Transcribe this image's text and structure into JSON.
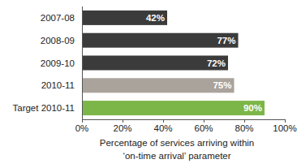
{
  "chart_data": {
    "type": "bar",
    "orientation": "horizontal",
    "categories": [
      "2007-08",
      "2008-09",
      "2009-10",
      "2010-11",
      "Target 2010-11"
    ],
    "values": [
      42,
      77,
      72,
      75,
      90
    ],
    "value_labels": [
      "42%",
      "77%",
      "72%",
      "75%",
      "90%"
    ],
    "colors": [
      "#3b3b3b",
      "#3b3b3b",
      "#3b3b3b",
      "#aaa39c",
      "#7cb648"
    ],
    "data_labels": true,
    "xlabel": "Percentage of services arriving within ‘on-time arrival’ parameter",
    "xlim": [
      0,
      100
    ],
    "xticks": [
      {
        "value": 0,
        "label": "0%"
      },
      {
        "value": 20,
        "label": "20%"
      },
      {
        "value": 40,
        "label": "40%"
      },
      {
        "value": 60,
        "label": "60%"
      },
      {
        "value": 80,
        "label": "80%"
      },
      {
        "value": 100,
        "label": "100%"
      }
    ],
    "grid": false
  }
}
